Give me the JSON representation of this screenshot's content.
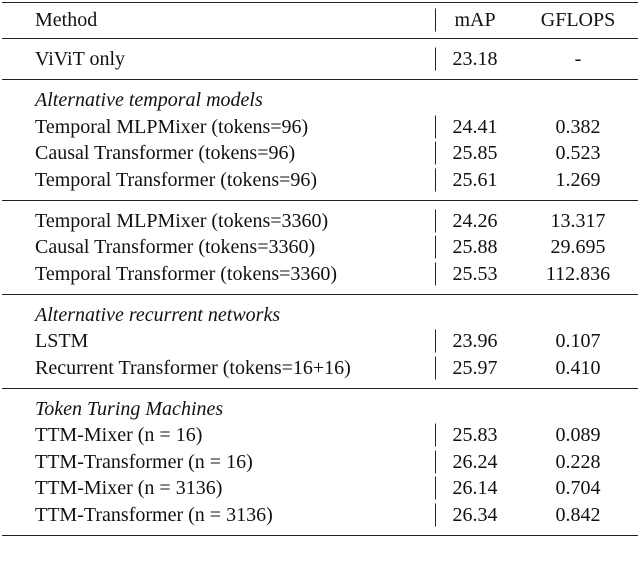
{
  "table": {
    "columns": [
      "Method",
      "mAP",
      "GFLOPS"
    ],
    "sections": [
      {
        "rows": [
          [
            "ViViT only",
            "23.18",
            "-"
          ]
        ]
      },
      {
        "title": "Alternative temporal models",
        "rows": [
          [
            "Temporal MLPMixer (tokens=96)",
            "24.41",
            "0.382"
          ],
          [
            "Causal Transformer (tokens=96)",
            "25.85",
            "0.523"
          ],
          [
            "Temporal Transformer (tokens=96)",
            "25.61",
            "1.269"
          ]
        ]
      },
      {
        "rows": [
          [
            "Temporal MLPMixer (tokens=3360)",
            "24.26",
            "13.317"
          ],
          [
            "Causal Transformer (tokens=3360)",
            "25.88",
            "29.695"
          ],
          [
            "Temporal Transformer (tokens=3360)",
            "25.53",
            "112.836"
          ]
        ]
      },
      {
        "title": "Alternative recurrent networks",
        "rows": [
          [
            "LSTM",
            "23.96",
            "0.107"
          ],
          [
            "Recurrent Transformer (tokens=16+16)",
            "25.97",
            "0.410"
          ]
        ]
      },
      {
        "title": "Token Turing Machines",
        "rows": [
          [
            "TTM-Mixer (n = 16)",
            "25.83",
            "0.089"
          ],
          [
            "TTM-Transformer (n = 16)",
            "26.24",
            "0.228"
          ],
          [
            "TTM-Mixer (n = 3136)",
            "26.14",
            "0.704"
          ],
          [
            "TTM-Transformer (n = 3136)",
            "26.34",
            "0.842"
          ]
        ]
      }
    ]
  }
}
